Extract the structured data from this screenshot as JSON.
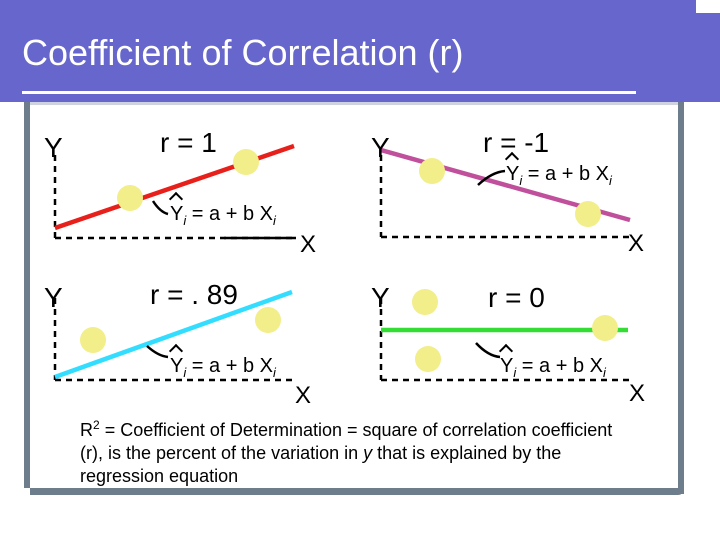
{
  "title": "Coefficient of Correlation (r)",
  "colors": {
    "banner": "#6666cc",
    "frame": "#6e7d8c",
    "dot_fill": "#f2ee8a",
    "line_red": "#e8201c",
    "line_purple": "#c0509c",
    "line_cyan": "#33ddff",
    "line_green": "#33dd33"
  },
  "panels": {
    "top_left": {
      "y_label": "Y",
      "x_label": "X",
      "r_label": "r = 1",
      "eq_main": "Y",
      "eq_sub": "i",
      "eq_rest": " = a + b X",
      "eq_sub2": "i"
    },
    "top_right": {
      "y_label": "Y",
      "x_label": "X",
      "r_label": "r = -1",
      "eq_main": "Y",
      "eq_sub": "i",
      "eq_rest": " = a + b X",
      "eq_sub2": "i"
    },
    "bottom_left": {
      "y_label": "Y",
      "x_label": "X",
      "r_label": "r = . 89",
      "eq_main": "Y",
      "eq_sub": "i",
      "eq_rest": " = a + b X",
      "eq_sub2": "i"
    },
    "bottom_right": {
      "y_label": "Y",
      "x_label": "X",
      "r_label": "r = 0",
      "eq_main": "Y",
      "eq_sub": "i",
      "eq_rest": " = a + b X",
      "eq_sub2": "i"
    }
  },
  "footnote": {
    "r2": "R",
    "sup": "2",
    "text": " = Coefficient of Determination = square of correlation coefficient (r), is the percent of the variation in ",
    "y": "y",
    "text2": " that is explained by the regression equation"
  }
}
